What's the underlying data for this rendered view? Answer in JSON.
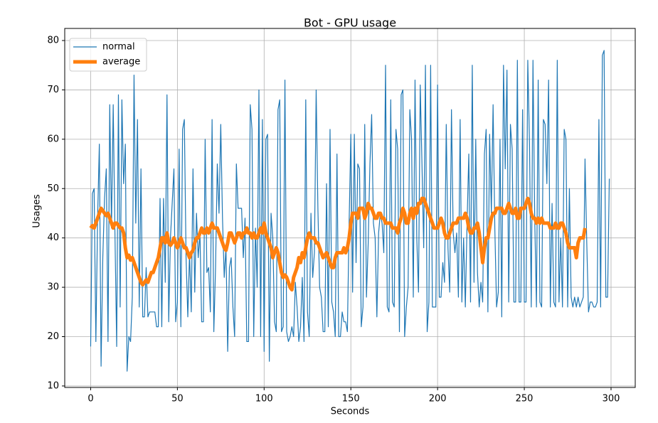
{
  "chart_data": {
    "type": "line",
    "title": "Bot - GPU usage",
    "xlabel": "Seconds",
    "ylabel": "Usages",
    "x": [
      0,
      1,
      2,
      3,
      4,
      5,
      6,
      7,
      8,
      9,
      10,
      11,
      12,
      13,
      14,
      15,
      16,
      17,
      18,
      19,
      20,
      21,
      22,
      23,
      24,
      25,
      26,
      27,
      28,
      29,
      30,
      31,
      32,
      33,
      34,
      35,
      36,
      37,
      38,
      39,
      40,
      41,
      42,
      43,
      44,
      45,
      46,
      47,
      48,
      49,
      50,
      51,
      52,
      53,
      54,
      55,
      56,
      57,
      58,
      59,
      60,
      61,
      62,
      63,
      64,
      65,
      66,
      67,
      68,
      69,
      70,
      71,
      72,
      73,
      74,
      75,
      76,
      77,
      78,
      79,
      80,
      81,
      82,
      83,
      84,
      85,
      86,
      87,
      88,
      89,
      90,
      91,
      92,
      93,
      94,
      95,
      96,
      97,
      98,
      99,
      100,
      101,
      102,
      103,
      104,
      105,
      106,
      107,
      108,
      109,
      110,
      111,
      112,
      113,
      114,
      115,
      116,
      117,
      118,
      119,
      120,
      121,
      122,
      123,
      124,
      125,
      126,
      127,
      128,
      129,
      130,
      131,
      132,
      133,
      134,
      135,
      136,
      137,
      138,
      139,
      140,
      141,
      142,
      143,
      144,
      145,
      146,
      147,
      148,
      149,
      150,
      151,
      152,
      153,
      154,
      155,
      156,
      157,
      158,
      159,
      160,
      161,
      162,
      163,
      164,
      165,
      166,
      167,
      168,
      169,
      170,
      171,
      172,
      173,
      174,
      175,
      176,
      177,
      178,
      179,
      180,
      181,
      182,
      183,
      184,
      185,
      186,
      187,
      188,
      189,
      190,
      191,
      192,
      193,
      194,
      195,
      196,
      197,
      198,
      199,
      200,
      201,
      202,
      203,
      204,
      205,
      206,
      207,
      208,
      209,
      210,
      211,
      212,
      213,
      214,
      215,
      216,
      217,
      218,
      219,
      220,
      221,
      222,
      223,
      224,
      225,
      226,
      227,
      228,
      229,
      230,
      231,
      232,
      233,
      234,
      235,
      236,
      237,
      238,
      239,
      240,
      241,
      242,
      243,
      244,
      245,
      246,
      247,
      248,
      249,
      250,
      251,
      252,
      253,
      254,
      255,
      256,
      257,
      258,
      259,
      260,
      261,
      262,
      263,
      264,
      265,
      266,
      267,
      268,
      269,
      270,
      271,
      272,
      273,
      274,
      275,
      276,
      277,
      278,
      279,
      280,
      281,
      282,
      283,
      284,
      285,
      286,
      287,
      288,
      289,
      290,
      291,
      292,
      293,
      294,
      295,
      296,
      297,
      298,
      299
    ],
    "series": [
      {
        "name": "normal",
        "color": "#1f77b4",
        "width": 1.2,
        "values": [
          18,
          49,
          50,
          19,
          44,
          59,
          14,
          36,
          48,
          54,
          19,
          67,
          42,
          67,
          41,
          18,
          69,
          26,
          68,
          51,
          59,
          13,
          20,
          19,
          28,
          73,
          43,
          64,
          26,
          54,
          24,
          24,
          34,
          24,
          25,
          25,
          25,
          25,
          22,
          22,
          48,
          22,
          48,
          31,
          69,
          23,
          40,
          47,
          54,
          23,
          27,
          58,
          22,
          62,
          64,
          36,
          24,
          37,
          25,
          54,
          29,
          45,
          36,
          41,
          23,
          23,
          60,
          33,
          34,
          25,
          64,
          21,
          34,
          55,
          45,
          63,
          44,
          32,
          38,
          17,
          34,
          36,
          26,
          20,
          55,
          46,
          46,
          46,
          36,
          44,
          19,
          19,
          67,
          62,
          20,
          42,
          30,
          70,
          20,
          64,
          17,
          60,
          61,
          15,
          45,
          40,
          23,
          21,
          66,
          68,
          21,
          22,
          72,
          21,
          19,
          20,
          22,
          20,
          31,
          26,
          19,
          22,
          32,
          19,
          68,
          25,
          20,
          45,
          32,
          37,
          70,
          46,
          30,
          28,
          21,
          21,
          51,
          22,
          62,
          27,
          25,
          20,
          57,
          20,
          20,
          25,
          23,
          23,
          21,
          43,
          61,
          29,
          61,
          35,
          55,
          54,
          22,
          26,
          63,
          28,
          39,
          55,
          65,
          43,
          40,
          24,
          41,
          45,
          43,
          37,
          75,
          26,
          25,
          68,
          27,
          26,
          62,
          58,
          21,
          69,
          70,
          20,
          26,
          30,
          66,
          60,
          28,
          72,
          40,
          29,
          71,
          55,
          38,
          75,
          21,
          27,
          75,
          26,
          26,
          26,
          71,
          28,
          28,
          35,
          31,
          63,
          38,
          29,
          66,
          41,
          37,
          41,
          28,
          64,
          27,
          40,
          26,
          43,
          57,
          27,
          75,
          31,
          60,
          33,
          26,
          31,
          27,
          57,
          62,
          25,
          61,
          45,
          67,
          42,
          26,
          29,
          60,
          24,
          75,
          54,
          74,
          27,
          63,
          58,
          27,
          27,
          76,
          27,
          27,
          66,
          27,
          27,
          76,
          59,
          26,
          76,
          44,
          26,
          72,
          27,
          26,
          64,
          63,
          51,
          72,
          26,
          47,
          27,
          26,
          76,
          27,
          40,
          26,
          62,
          60,
          26,
          50,
          28,
          26,
          28,
          26,
          28,
          26,
          27,
          28,
          56,
          39,
          25,
          27,
          27,
          26,
          26,
          27,
          64,
          26,
          77,
          78,
          28,
          28,
          52
        ]
      },
      {
        "name": "average",
        "color": "#ff7f0e",
        "width": 5,
        "values": [
          42,
          42.5,
          42,
          43,
          44,
          45,
          46,
          45.5,
          45,
          44.5,
          45,
          44,
          43,
          42,
          43,
          43,
          42.5,
          42,
          42,
          41,
          38,
          36,
          36.5,
          35.5,
          36,
          35,
          34,
          33,
          32,
          31,
          30.5,
          31,
          31.5,
          31,
          32,
          33,
          33,
          34,
          35,
          36,
          38,
          40,
          40,
          39,
          41,
          39,
          38.5,
          39,
          40,
          39,
          38,
          39,
          40,
          39,
          38,
          38,
          37,
          36,
          37,
          37.5,
          39,
          40,
          40,
          41,
          42,
          41,
          41,
          42,
          41,
          42,
          43,
          42,
          42,
          42,
          41,
          40,
          39,
          38,
          37.5,
          39,
          41,
          41,
          40,
          39,
          40,
          41,
          41,
          40,
          41,
          41,
          42,
          41,
          41,
          40,
          41,
          40,
          40,
          41,
          42,
          41,
          43,
          41,
          40,
          39,
          38,
          36,
          37,
          38,
          37,
          35,
          33,
          32,
          32.5,
          32,
          31,
          30,
          29.5,
          32,
          33,
          34,
          36,
          35,
          37,
          36,
          38,
          40,
          41,
          40,
          40,
          40,
          39,
          39,
          38,
          37,
          36,
          36.5,
          37,
          36,
          35,
          34,
          34,
          36,
          37,
          37,
          37,
          37,
          38,
          37,
          38,
          40,
          43,
          45,
          45,
          45,
          44,
          46,
          46,
          46,
          44,
          45,
          47,
          46,
          46,
          45,
          44,
          44,
          45,
          45,
          44,
          44,
          43,
          43,
          43,
          43,
          42,
          42,
          42,
          41,
          43,
          44,
          46,
          45,
          43,
          43,
          45,
          46,
          44,
          46,
          45,
          47,
          47,
          48,
          48,
          47,
          46,
          45,
          44,
          43,
          42,
          42,
          42,
          43,
          44,
          43,
          41,
          40,
          40,
          41,
          42,
          43,
          43,
          43,
          44,
          44,
          44,
          44,
          45,
          44,
          42,
          41,
          41,
          42,
          42,
          43,
          41,
          38,
          35,
          38,
          40,
          40,
          42,
          44,
          45,
          45,
          46,
          46,
          46,
          46,
          45,
          45,
          46,
          47,
          46,
          45,
          45,
          46,
          44,
          44,
          46,
          46,
          46,
          47,
          48,
          47,
          45,
          44,
          44,
          43,
          44,
          43,
          44,
          43,
          43,
          43,
          43,
          42,
          42,
          42,
          43,
          42,
          42,
          43,
          43,
          42,
          41,
          39,
          38,
          38,
          38,
          38,
          36,
          39,
          40,
          40,
          40,
          42,
          null,
          null,
          null,
          null,
          null,
          null,
          null,
          null,
          null,
          null,
          null,
          null,
          null,
          null
        ]
      }
    ],
    "xlim": [
      -14.95,
      313.95
    ],
    "ylim": [
      9.7,
      82.45
    ],
    "xticks": [
      0,
      50,
      100,
      150,
      200,
      250,
      300
    ],
    "yticks": [
      10,
      20,
      30,
      40,
      50,
      60,
      70,
      80
    ],
    "grid": true,
    "legend": "upper left"
  }
}
